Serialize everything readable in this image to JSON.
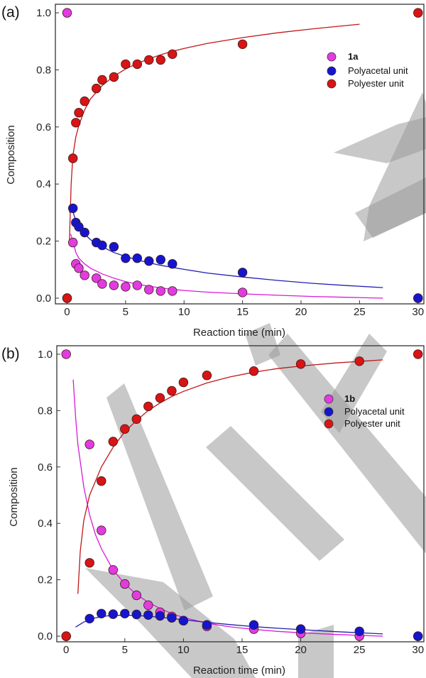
{
  "figure": {
    "watermark": "WILEY",
    "colors": {
      "monomer": "#e23be0",
      "monomer_line": "#d81bd8",
      "polyacetal": "#1515d0",
      "polyacetal_line": "#2020b0",
      "polyester": "#d81414",
      "polyester_line": "#c01818",
      "watermark": "#9a9a9a"
    }
  },
  "chart_data": [
    {
      "panel": "(a)",
      "type": "scatter",
      "xlabel": "Reaction time (min)",
      "ylabel": "Composition",
      "xlim": [
        -1,
        30.5
      ],
      "ylim": [
        -0.02,
        1.03
      ],
      "xticks": [
        0,
        5,
        10,
        15,
        20,
        25,
        30
      ],
      "xtick_labels": [
        "0",
        "5",
        "10",
        "15",
        "20",
        "25",
        "30"
      ],
      "yticks": [
        0.0,
        0.2,
        0.4,
        0.6,
        0.8,
        1.0
      ],
      "ytick_labels": [
        "0.0",
        "0.2",
        "0.4",
        "0.6",
        "0.8",
        "1.0"
      ],
      "legend_position": "upper-right",
      "series": [
        {
          "name": "1a",
          "bold": true,
          "color_key": "monomer",
          "points": [
            [
              0,
              1.0
            ],
            [
              0.5,
              0.195
            ],
            [
              0.75,
              0.12
            ],
            [
              1,
              0.105
            ],
            [
              1.5,
              0.08
            ],
            [
              2.5,
              0.07
            ],
            [
              3,
              0.05
            ],
            [
              4,
              0.045
            ],
            [
              5,
              0.04
            ],
            [
              6,
              0.045
            ],
            [
              7,
              0.03
            ],
            [
              8,
              0.025
            ],
            [
              9,
              0.025
            ],
            [
              15,
              0.02
            ],
            [
              30,
              0.0
            ]
          ],
          "fit": [
            [
              0.3,
              0.225
            ],
            [
              0.5,
              0.2
            ],
            [
              0.75,
              0.16
            ],
            [
              1,
              0.14
            ],
            [
              1.5,
              0.12
            ],
            [
              2,
              0.105
            ],
            [
              3,
              0.085
            ],
            [
              4,
              0.07
            ],
            [
              5,
              0.058
            ],
            [
              6,
              0.049
            ],
            [
              7,
              0.042
            ],
            [
              8,
              0.036
            ],
            [
              9,
              0.031
            ],
            [
              10,
              0.027
            ],
            [
              12,
              0.021
            ],
            [
              15,
              0.015
            ],
            [
              18,
              0.01
            ],
            [
              21,
              0.006
            ],
            [
              24,
              0.003
            ],
            [
              27,
              0.0
            ]
          ]
        },
        {
          "name": "Polyacetal unit",
          "bold": false,
          "color_key": "polyacetal",
          "points": [
            [
              0,
              0.0
            ],
            [
              0.5,
              0.315
            ],
            [
              0.75,
              0.265
            ],
            [
              1,
              0.25
            ],
            [
              1.5,
              0.23
            ],
            [
              2.5,
              0.195
            ],
            [
              3,
              0.185
            ],
            [
              4,
              0.18
            ],
            [
              5,
              0.14
            ],
            [
              6,
              0.14
            ],
            [
              7,
              0.13
            ],
            [
              8,
              0.135
            ],
            [
              9,
              0.12
            ],
            [
              15,
              0.09
            ],
            [
              30,
              0.0
            ]
          ],
          "fit": [
            [
              0.2,
              0.3
            ],
            [
              0.4,
              0.32
            ],
            [
              0.6,
              0.29
            ],
            [
              0.8,
              0.265
            ],
            [
              1,
              0.25
            ],
            [
              1.5,
              0.225
            ],
            [
              2,
              0.205
            ],
            [
              3,
              0.18
            ],
            [
              4,
              0.16
            ],
            [
              5,
              0.146
            ],
            [
              6,
              0.134
            ],
            [
              7,
              0.124
            ],
            [
              8,
              0.115
            ],
            [
              9,
              0.108
            ],
            [
              10,
              0.101
            ],
            [
              12,
              0.088
            ],
            [
              15,
              0.074
            ],
            [
              18,
              0.062
            ],
            [
              21,
              0.052
            ],
            [
              24,
              0.044
            ],
            [
              27,
              0.037
            ]
          ]
        },
        {
          "name": "Polyester unit",
          "bold": false,
          "color_key": "polyester",
          "points": [
            [
              0,
              0.0
            ],
            [
              0.5,
              0.49
            ],
            [
              0.75,
              0.615
            ],
            [
              1,
              0.65
            ],
            [
              1.5,
              0.69
            ],
            [
              2.5,
              0.735
            ],
            [
              3,
              0.765
            ],
            [
              4,
              0.775
            ],
            [
              5,
              0.82
            ],
            [
              6,
              0.82
            ],
            [
              7,
              0.835
            ],
            [
              8,
              0.835
            ],
            [
              9,
              0.855
            ],
            [
              15,
              0.89
            ],
            [
              30,
              1.0
            ]
          ],
          "fit": [
            [
              0.2,
              0.2
            ],
            [
              0.35,
              0.4
            ],
            [
              0.5,
              0.5
            ],
            [
              0.75,
              0.565
            ],
            [
              1,
              0.605
            ],
            [
              1.5,
              0.66
            ],
            [
              2,
              0.698
            ],
            [
              3,
              0.745
            ],
            [
              4,
              0.778
            ],
            [
              5,
              0.803
            ],
            [
              6,
              0.823
            ],
            [
              7,
              0.839
            ],
            [
              8,
              0.853
            ],
            [
              9,
              0.865
            ],
            [
              10,
              0.875
            ],
            [
              12,
              0.893
            ],
            [
              15,
              0.913
            ],
            [
              18,
              0.93
            ],
            [
              21,
              0.944
            ],
            [
              25,
              0.96
            ]
          ]
        }
      ]
    },
    {
      "panel": "(b)",
      "type": "scatter",
      "xlabel": "Reaction time (min)",
      "ylabel": "Composition",
      "xlim": [
        -0.8,
        30.5
      ],
      "ylim": [
        -0.02,
        1.03
      ],
      "xticks": [
        0,
        5,
        10,
        15,
        20,
        25,
        30
      ],
      "xtick_labels": [
        "0",
        "5",
        "10",
        "15",
        "20",
        "25",
        "30"
      ],
      "yticks": [
        0.0,
        0.2,
        0.4,
        0.6,
        0.8,
        1.0
      ],
      "ytick_labels": [
        "0.0",
        "0.2",
        "0.4",
        "0.6",
        "0.8",
        "1.0"
      ],
      "legend_position": "upper-right",
      "series": [
        {
          "name": "1b",
          "bold": true,
          "color_key": "monomer",
          "points": [
            [
              0,
              1.0
            ],
            [
              2,
              0.68
            ],
            [
              3,
              0.375
            ],
            [
              4,
              0.235
            ],
            [
              5,
              0.185
            ],
            [
              6,
              0.145
            ],
            [
              7,
              0.11
            ],
            [
              8,
              0.085
            ],
            [
              9,
              0.07
            ],
            [
              10,
              0.055
            ],
            [
              12,
              0.035
            ],
            [
              16,
              0.025
            ],
            [
              20,
              0.01
            ],
            [
              25,
              0.0
            ],
            [
              30,
              0.0
            ]
          ],
          "fit": [
            [
              0.6,
              0.91
            ],
            [
              0.8,
              0.78
            ],
            [
              1,
              0.68
            ],
            [
              1.5,
              0.53
            ],
            [
              2,
              0.43
            ],
            [
              2.5,
              0.36
            ],
            [
              3,
              0.31
            ],
            [
              4,
              0.235
            ],
            [
              5,
              0.185
            ],
            [
              6,
              0.148
            ],
            [
              7,
              0.12
            ],
            [
              8,
              0.098
            ],
            [
              9,
              0.08
            ],
            [
              10,
              0.066
            ],
            [
              12,
              0.046
            ],
            [
              14,
              0.033
            ],
            [
              16,
              0.024
            ],
            [
              18,
              0.017
            ],
            [
              20,
              0.012
            ],
            [
              23,
              0.006
            ],
            [
              27,
              0.0
            ]
          ]
        },
        {
          "name": "Polyacetal unit",
          "bold": false,
          "color_key": "polyacetal",
          "points": [
            [
              0,
              0.0
            ],
            [
              2,
              0.062
            ],
            [
              3,
              0.08
            ],
            [
              4,
              0.078
            ],
            [
              5,
              0.08
            ],
            [
              6,
              0.077
            ],
            [
              7,
              0.075
            ],
            [
              8,
              0.072
            ],
            [
              9,
              0.065
            ],
            [
              10,
              0.055
            ],
            [
              12,
              0.04
            ],
            [
              16,
              0.04
            ],
            [
              20,
              0.025
            ],
            [
              25,
              0.017
            ],
            [
              30,
              0.0
            ]
          ],
          "fit": [
            [
              0.8,
              0.032
            ],
            [
              1.5,
              0.05
            ],
            [
              2.5,
              0.065
            ],
            [
              3.5,
              0.072
            ],
            [
              4.5,
              0.074
            ],
            [
              5.5,
              0.074
            ],
            [
              6.5,
              0.072
            ],
            [
              8,
              0.067
            ],
            [
              10,
              0.058
            ],
            [
              12,
              0.049
            ],
            [
              14,
              0.041
            ],
            [
              16,
              0.034
            ],
            [
              18,
              0.028
            ],
            [
              20,
              0.023
            ],
            [
              23,
              0.016
            ],
            [
              27,
              0.008
            ]
          ]
        },
        {
          "name": "Polyester unit",
          "bold": false,
          "color_key": "polyester",
          "points": [
            [
              0,
              0.0
            ],
            [
              2,
              0.26
            ],
            [
              3,
              0.55
            ],
            [
              4,
              0.69
            ],
            [
              5,
              0.735
            ],
            [
              6,
              0.77
            ],
            [
              7,
              0.815
            ],
            [
              8,
              0.845
            ],
            [
              9,
              0.87
            ],
            [
              10,
              0.9
            ],
            [
              12,
              0.925
            ],
            [
              16,
              0.94
            ],
            [
              20,
              0.965
            ],
            [
              25,
              0.975
            ],
            [
              30,
              1.0
            ]
          ],
          "fit": [
            [
              1,
              0.15
            ],
            [
              1.2,
              0.3
            ],
            [
              1.5,
              0.41
            ],
            [
              2,
              0.5
            ],
            [
              3,
              0.6
            ],
            [
              4,
              0.67
            ],
            [
              5,
              0.725
            ],
            [
              6,
              0.765
            ],
            [
              7,
              0.8
            ],
            [
              8,
              0.827
            ],
            [
              9,
              0.85
            ],
            [
              10,
              0.868
            ],
            [
              12,
              0.898
            ],
            [
              14,
              0.92
            ],
            [
              16,
              0.936
            ],
            [
              18,
              0.949
            ],
            [
              20,
              0.958
            ],
            [
              23,
              0.969
            ],
            [
              27,
              0.98
            ]
          ]
        }
      ]
    }
  ]
}
